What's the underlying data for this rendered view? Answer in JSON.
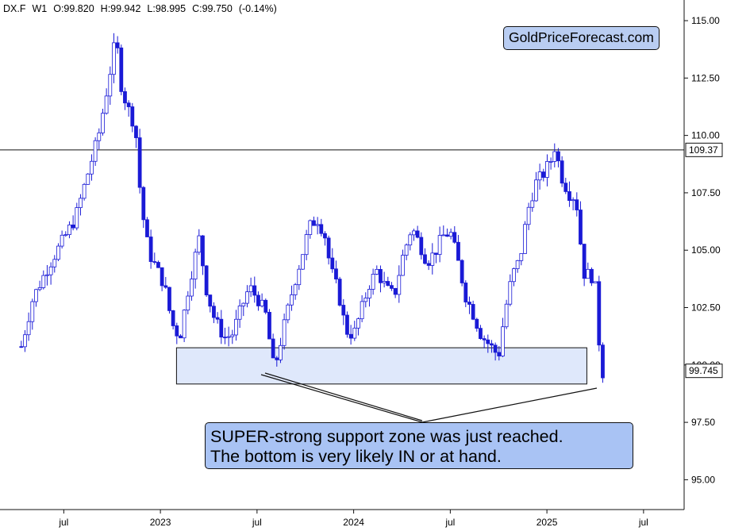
{
  "header": {
    "symbol": "DX.F",
    "timeframe": "W1",
    "open": "O:99.820",
    "high": "H:99.942",
    "low": "L:98.995",
    "close": "C:99.750",
    "change": "(-0.14%)"
  },
  "brand": "GoldPriceForecast.com",
  "annotation": {
    "line1": "SUPER-strong support zone was just reached.",
    "line2": "The bottom is very likely IN or at hand."
  },
  "colors": {
    "candle": "#1a1ad6",
    "zone_fill": "#dfe8fb",
    "note_fill": "#a9c3f4",
    "brand_fill": "#b9cdf2"
  },
  "chart_data": {
    "type": "candlestick",
    "title": "",
    "y_ticks": [
      "115.00",
      "112.50",
      "110.00",
      "107.50",
      "105.00",
      "102.50",
      "100.00",
      "97.50",
      "95.00"
    ],
    "x_ticks": [
      "jul",
      "2023",
      "jul",
      "2024",
      "jul",
      "2025",
      "jul"
    ],
    "ylim": [
      93.7,
      115.9
    ],
    "horizontal_line": {
      "value": 109.37,
      "label": "109.37"
    },
    "last_price": {
      "value": 99.745,
      "label": "99.745"
    },
    "support_zone": {
      "low": 99.17,
      "high": 100.75,
      "start": "2023-02",
      "end": "2025-03"
    },
    "weekly_close_path": [
      [
        2022.28,
        100.8
      ],
      [
        2022.34,
        102.9
      ],
      [
        2022.42,
        104.3
      ],
      [
        2022.5,
        105.5
      ],
      [
        2022.56,
        106.4
      ],
      [
        2022.62,
        108.2
      ],
      [
        2022.68,
        110.0
      ],
      [
        2022.73,
        112.3
      ],
      [
        2022.77,
        114.3
      ],
      [
        2022.8,
        112.0
      ],
      [
        2022.84,
        111.0
      ],
      [
        2022.87,
        110.4
      ],
      [
        2022.9,
        107.0
      ],
      [
        2022.94,
        104.9
      ],
      [
        2022.98,
        104.2
      ],
      [
        2023.02,
        103.5
      ],
      [
        2023.06,
        101.8
      ],
      [
        2023.1,
        101.2
      ],
      [
        2023.15,
        103.6
      ],
      [
        2023.2,
        105.5
      ],
      [
        2023.24,
        103.2
      ],
      [
        2023.28,
        102.0
      ],
      [
        2023.33,
        101.2
      ],
      [
        2023.37,
        101.3
      ],
      [
        2023.42,
        102.5
      ],
      [
        2023.46,
        103.4
      ],
      [
        2023.51,
        102.8
      ],
      [
        2023.55,
        102.1
      ],
      [
        2023.58,
        100.0
      ],
      [
        2023.6,
        100.2
      ],
      [
        2023.64,
        101.7
      ],
      [
        2023.69,
        103.5
      ],
      [
        2023.73,
        104.7
      ],
      [
        2023.77,
        106.0
      ],
      [
        2023.81,
        106.4
      ],
      [
        2023.85,
        105.7
      ],
      [
        2023.88,
        104.2
      ],
      [
        2023.92,
        103.2
      ],
      [
        2023.96,
        101.5
      ],
      [
        2024.0,
        101.3
      ],
      [
        2024.04,
        102.4
      ],
      [
        2024.08,
        103.5
      ],
      [
        2024.12,
        104.1
      ],
      [
        2024.17,
        103.3
      ],
      [
        2024.21,
        103.0
      ],
      [
        2024.25,
        104.6
      ],
      [
        2024.3,
        106.0
      ],
      [
        2024.34,
        105.3
      ],
      [
        2024.38,
        104.5
      ],
      [
        2024.42,
        104.9
      ],
      [
        2024.46,
        105.6
      ],
      [
        2024.5,
        105.8
      ],
      [
        2024.54,
        104.5
      ],
      [
        2024.58,
        103.0
      ],
      [
        2024.62,
        102.2
      ],
      [
        2024.66,
        101.3
      ],
      [
        2024.71,
        100.8
      ],
      [
        2024.75,
        100.4
      ],
      [
        2024.78,
        102.2
      ],
      [
        2024.82,
        103.9
      ],
      [
        2024.86,
        104.6
      ],
      [
        2024.9,
        106.7
      ],
      [
        2024.94,
        107.9
      ],
      [
        2024.98,
        108.3
      ],
      [
        2025.02,
        108.9
      ],
      [
        2025.04,
        109.5
      ],
      [
        2025.08,
        108.1
      ],
      [
        2025.12,
        107.4
      ],
      [
        2025.15,
        107.3
      ],
      [
        2025.19,
        104.0
      ],
      [
        2025.23,
        103.9
      ],
      [
        2025.25,
        103.4
      ],
      [
        2025.27,
        101.0
      ],
      [
        2025.28,
        99.6
      ],
      [
        2025.3,
        99.75
      ]
    ]
  }
}
